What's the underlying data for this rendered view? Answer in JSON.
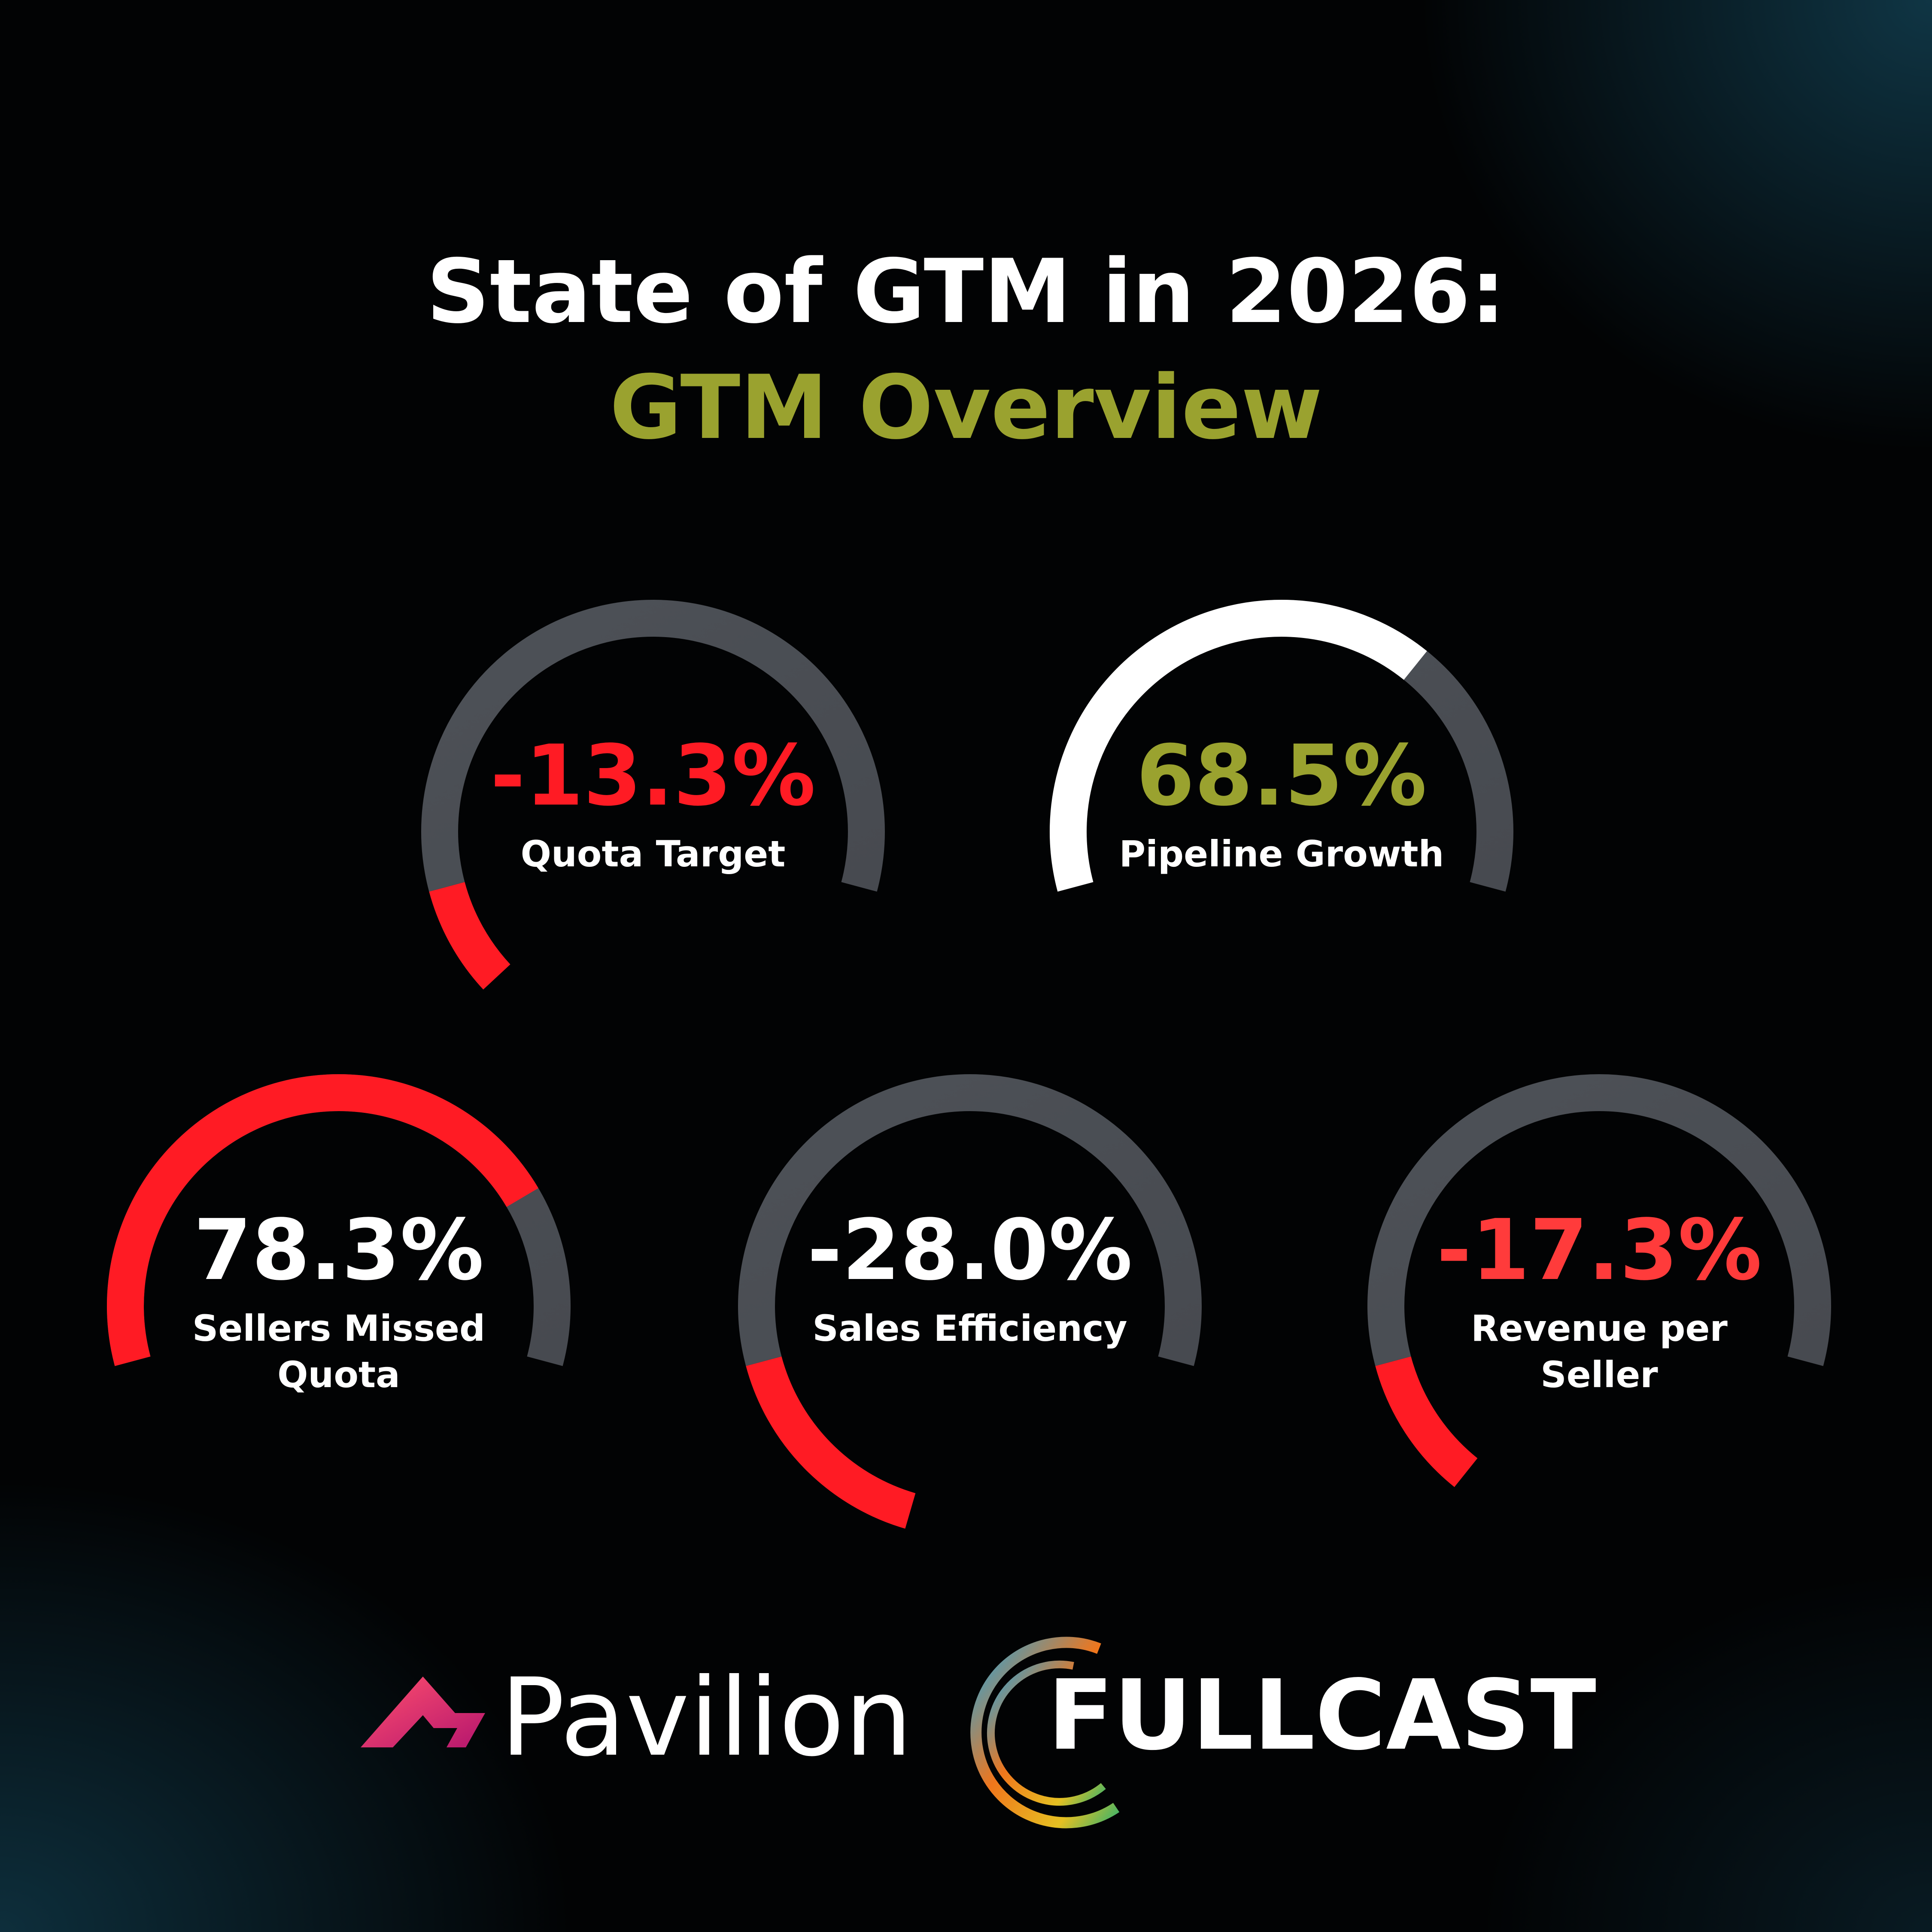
{
  "header": {
    "title": "State of GTM in 2026:",
    "subtitle": "GTM Overview",
    "subtitle_color": "#9aa22f"
  },
  "chart_data": [
    {
      "type": "gauge",
      "value": -13.3,
      "value_label": "-13.3%",
      "label": [
        "Quota Target"
      ],
      "color": "#ff1b24",
      "value_color": "#ff1b24",
      "ylim": [
        0,
        100
      ]
    },
    {
      "type": "gauge",
      "value": 68.5,
      "value_label": "68.5%",
      "label": [
        "Pipeline Growth"
      ],
      "color": "#ffffff",
      "value_color": "#9aa22f",
      "ylim": [
        0,
        100
      ]
    },
    {
      "type": "gauge",
      "value": 78.3,
      "value_label": "78.3%",
      "label": [
        "Sellers Missed",
        "Quota"
      ],
      "color": "#ff1b24",
      "value_color": "#ffffff",
      "ylim": [
        0,
        100
      ]
    },
    {
      "type": "gauge",
      "value": -28.0,
      "value_label": "-28.0%",
      "label": [
        "Sales Efficiency"
      ],
      "color": "#ff1b24",
      "value_color": "#ffffff",
      "ylim": [
        0,
        100
      ]
    },
    {
      "type": "gauge",
      "value": -17.3,
      "value_label": "-17.3%",
      "label": [
        "Revenue per",
        "Seller"
      ],
      "color": "#ff1b24",
      "value_color": "#ff3b3b",
      "ylim": [
        0,
        100
      ]
    }
  ],
  "logos": [
    "Pavilion",
    "FULLCAST"
  ]
}
